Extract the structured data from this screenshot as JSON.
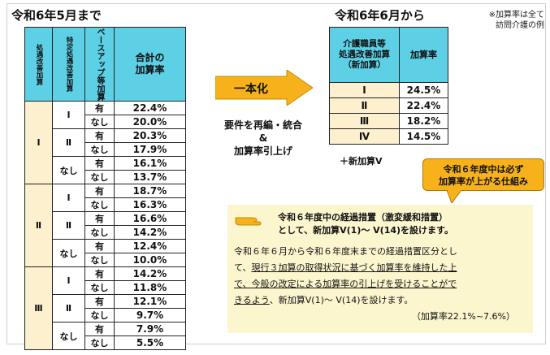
{
  "left_title": "令和6年5月まで",
  "right_title": "令和6年6月から",
  "note_lines": [
    "※加算率は全て",
    "訪問介護の例"
  ],
  "left_table": {
    "headers": {
      "h1": "処遇改善加算",
      "h2": "特定処遇改善加算",
      "h3": "ベースアップ等加算",
      "h4_line1": "合計の",
      "h4_line2": "加算率"
    },
    "groups": [
      {
        "label": "Ⅰ",
        "subs": [
          {
            "label": "Ⅰ",
            "rows": [
              {
                "yn": "有",
                "rate": "22.4%"
              },
              {
                "yn": "なし",
                "rate": "20.0%"
              }
            ]
          },
          {
            "label": "Ⅱ",
            "rows": [
              {
                "yn": "有",
                "rate": "20.3%"
              },
              {
                "yn": "なし",
                "rate": "17.9%"
              }
            ]
          },
          {
            "label": "なし",
            "rows": [
              {
                "yn": "有",
                "rate": "16.1%"
              },
              {
                "yn": "なし",
                "rate": "13.7%"
              }
            ]
          }
        ]
      },
      {
        "label": "Ⅱ",
        "subs": [
          {
            "label": "Ⅰ",
            "rows": [
              {
                "yn": "有",
                "rate": "18.7%"
              },
              {
                "yn": "なし",
                "rate": "16.3%"
              }
            ]
          },
          {
            "label": "Ⅱ",
            "rows": [
              {
                "yn": "有",
                "rate": "16.6%"
              },
              {
                "yn": "なし",
                "rate": "14.2%"
              }
            ]
          },
          {
            "label": "なし",
            "rows": [
              {
                "yn": "有",
                "rate": "12.4%"
              },
              {
                "yn": "なし",
                "rate": "10.0%"
              }
            ]
          }
        ]
      },
      {
        "label": "Ⅲ",
        "subs": [
          {
            "label": "Ⅰ",
            "rows": [
              {
                "yn": "有",
                "rate": "14.2%"
              },
              {
                "yn": "なし",
                "rate": "11.8%"
              }
            ]
          },
          {
            "label": "Ⅱ",
            "rows": [
              {
                "yn": "有",
                "rate": "12.1%"
              },
              {
                "yn": "なし",
                "rate": "9.7%"
              }
            ]
          },
          {
            "label": "なし",
            "rows": [
              {
                "yn": "有",
                "rate": "7.9%"
              },
              {
                "yn": "なし",
                "rate": "5.5%"
              }
            ]
          }
        ]
      }
    ]
  },
  "arrow_label": "一本化",
  "middle_text": {
    "line1": "要件を再編・統合",
    "line2": "&",
    "line3": "加算率引上げ"
  },
  "right_table": {
    "headers": {
      "h1_line1": "介護職員等",
      "h1_line2": "処遇改善加算",
      "h1_line3": "（新加算）",
      "h2": "加算率"
    },
    "rows": [
      {
        "label": "Ⅰ",
        "rate": "24.5%"
      },
      {
        "label": "Ⅱ",
        "rate": "22.4%"
      },
      {
        "label": "Ⅲ",
        "rate": "18.2%"
      },
      {
        "label": "Ⅳ",
        "rate": "14.5%"
      }
    ]
  },
  "new_v_note": "＋新加算Ⅴ",
  "balloon": {
    "line1": "令和６年度中は必ず",
    "line2": "加算率が上がる仕組み"
  },
  "box": {
    "head_line1": "令和６年度中の経過措置（激変緩和措置）",
    "head_line2": "として、新加算Ⅴ(1)～ Ⅴ(14)を設けます。",
    "p1": "令和６年６月から令和６年度末までの経過措置区分とし",
    "p2_pre": "て、",
    "p2_ul": "現行３加算の取得状況に基づく加算率を維持した上",
    "p3_ul": "で、今般の改定による加算率の引上げを受けることがで",
    "p4_ul": "きるよう",
    "p4_post": "、新加算Ⅴ(1)～ Ⅴ(14)を設けます。",
    "p5": "（加算率22.1%~7.6%）"
  }
}
